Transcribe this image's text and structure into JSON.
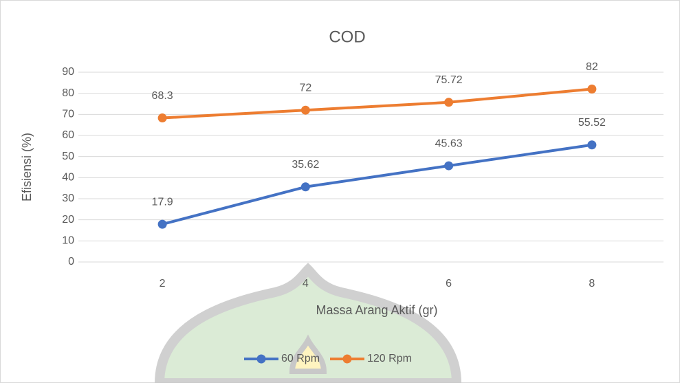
{
  "chart_data": {
    "type": "line",
    "title": "COD",
    "x_label": "Massa Arang Aktif (gr)",
    "y_label": "Efisiensi (%)",
    "categories": [
      "2",
      "4",
      "6",
      "8"
    ],
    "series": [
      {
        "name": "60 Rpm",
        "color": "#4472c4",
        "values": [
          17.9,
          35.62,
          45.63,
          55.52
        ]
      },
      {
        "name": "120 Rpm",
        "color": "#ed7d31",
        "values": [
          68.3,
          72,
          75.72,
          82
        ]
      }
    ],
    "ylim": [
      0,
      90
    ],
    "yticks": [
      0,
      10,
      20,
      30,
      40,
      50,
      60,
      70,
      80,
      90
    ],
    "grid": true,
    "legend": "bottom",
    "data_labels": true
  }
}
